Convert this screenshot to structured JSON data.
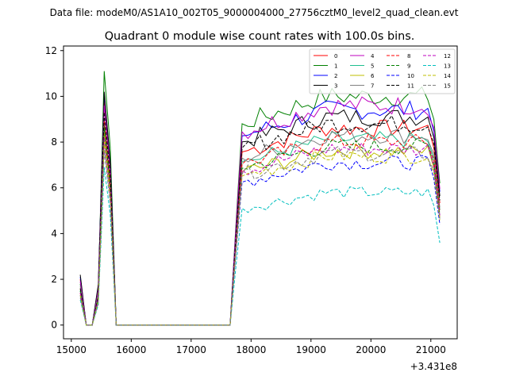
{
  "figure": {
    "suptitle": "Data file: modeM0/AS1A10_002T05_9000004000_27756cztM0_level2_quad_clean.evt",
    "title": "Quadrant 0 module wise count rates with 100.0s bins.",
    "x_offset_label": "+3.431e8"
  },
  "chart_data": {
    "type": "line",
    "title": "Quadrant 0 module wise count rates with 100.0s bins.",
    "xlabel": "",
    "ylabel": "",
    "x_offset": 343100000,
    "xlim": [
      14870,
      21440
    ],
    "ylim": [
      -0.6,
      12.2
    ],
    "xticks": [
      15000,
      16000,
      17000,
      18000,
      19000,
      20000,
      21000
    ],
    "yticks": [
      0,
      2,
      4,
      6,
      8,
      10,
      12
    ],
    "grid": false,
    "legend": {
      "placement": "top-right",
      "columns": 4
    },
    "modules": [
      {
        "name": "0",
        "color": "#ff0000",
        "dash": "solid",
        "level": 8.6,
        "peak": 9.9,
        "start": 2.0
      },
      {
        "name": "1",
        "color": "#008000",
        "dash": "solid",
        "level": 10.0,
        "peak": 11.1,
        "start": 1.8
      },
      {
        "name": "2",
        "color": "#0000ff",
        "dash": "solid",
        "level": 9.4,
        "peak": 10.1,
        "start": 2.1
      },
      {
        "name": "3",
        "color": "#000000",
        "dash": "solid",
        "level": 9.1,
        "peak": 10.2,
        "start": 2.2
      },
      {
        "name": "4",
        "color": "#bf00bf",
        "dash": "solid",
        "level": 9.6,
        "peak": 9.6,
        "start": 1.9
      },
      {
        "name": "5",
        "color": "#1fbf8f",
        "dash": "solid",
        "level": 8.1,
        "peak": 8.6,
        "start": 1.5
      },
      {
        "name": "6",
        "color": "#bfbf00",
        "dash": "solid",
        "level": 7.6,
        "peak": 8.4,
        "start": 1.6
      },
      {
        "name": "7",
        "color": "#808080",
        "dash": "solid",
        "level": 8.3,
        "peak": 9.0,
        "start": 1.7
      },
      {
        "name": "8",
        "color": "#ff0000",
        "dash": "dashed",
        "level": 8.0,
        "peak": 8.9,
        "start": 1.4
      },
      {
        "name": "9",
        "color": "#008000",
        "dash": "dashed",
        "level": 7.8,
        "peak": 8.7,
        "start": 1.5
      },
      {
        "name": "10",
        "color": "#0000ff",
        "dash": "dashed",
        "level": 7.1,
        "peak": 7.9,
        "start": 1.3
      },
      {
        "name": "11",
        "color": "#000000",
        "dash": "dashed",
        "level": 8.8,
        "peak": 9.3,
        "start": 1.6
      },
      {
        "name": "12",
        "color": "#bf00bf",
        "dash": "dashed",
        "level": 7.7,
        "peak": 8.2,
        "start": 1.4
      },
      {
        "name": "13",
        "color": "#00bfbf",
        "dash": "dashed",
        "level": 5.8,
        "peak": 6.9,
        "start": 1.1
      },
      {
        "name": "14",
        "color": "#bfbf00",
        "dash": "dashed",
        "level": 7.4,
        "peak": 8.0,
        "start": 1.3
      },
      {
        "name": "15",
        "color": "#808080",
        "dash": "dashed",
        "level": 7.5,
        "peak": 7.6,
        "start": 1.2
      }
    ]
  }
}
